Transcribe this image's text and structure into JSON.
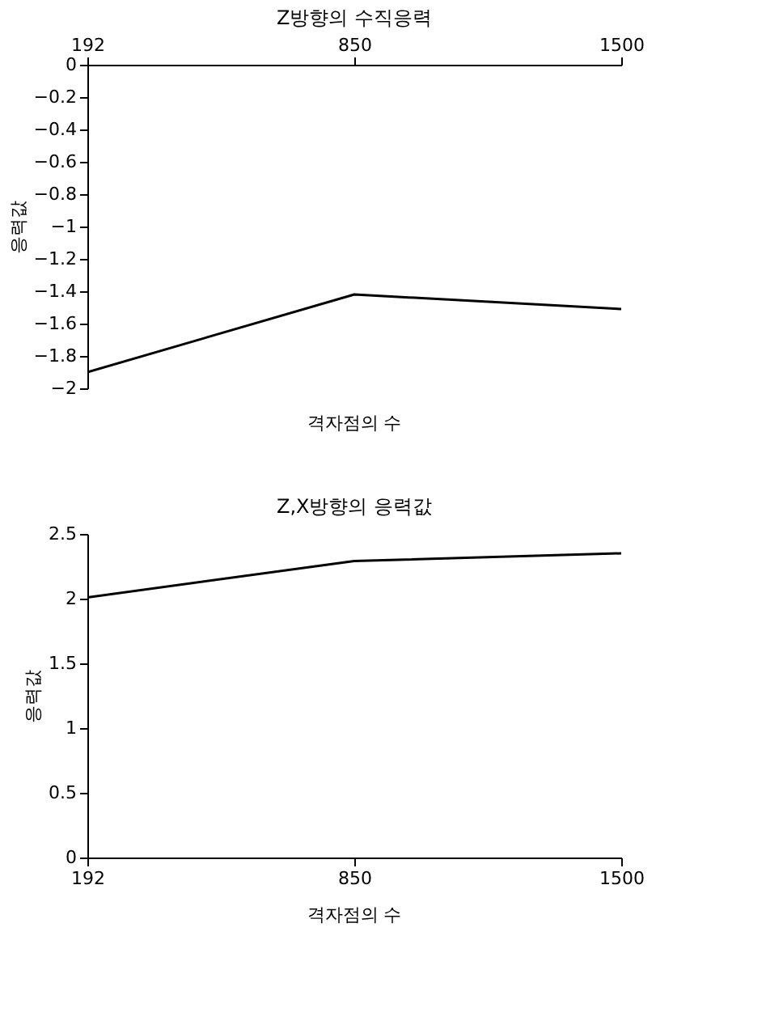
{
  "chart_data": [
    {
      "type": "line",
      "title": "Z방향의 수직응력",
      "xlabel": "격자점의 수",
      "ylabel": "응력값",
      "categories": [
        "192",
        "850",
        "1500"
      ],
      "series": [
        {
          "color": "#000000",
          "values": [
            -1.9,
            -1.42,
            -1.51
          ]
        }
      ],
      "ylim": [
        -2,
        0
      ],
      "yticks": [
        -2,
        -1.8,
        -1.6,
        -1.4,
        -1.2,
        -1,
        -0.8,
        -0.6,
        -0.4,
        -0.2,
        0
      ],
      "grid": false,
      "marker": "none",
      "line_style": "solid"
    },
    {
      "type": "line",
      "title": "Z,X방향의 응력값",
      "xlabel": "격자점의 수",
      "ylabel": "응력값",
      "categories": [
        "192",
        "850",
        "1500"
      ],
      "series": [
        {
          "color": "#000000",
          "values": [
            2.01,
            2.29,
            2.35
          ]
        }
      ],
      "ylim": [
        0,
        2.5
      ],
      "yticks": [
        0,
        0.5,
        1,
        1.5,
        2,
        2.5
      ],
      "grid": false,
      "marker": "none",
      "line_style": "solid"
    }
  ]
}
